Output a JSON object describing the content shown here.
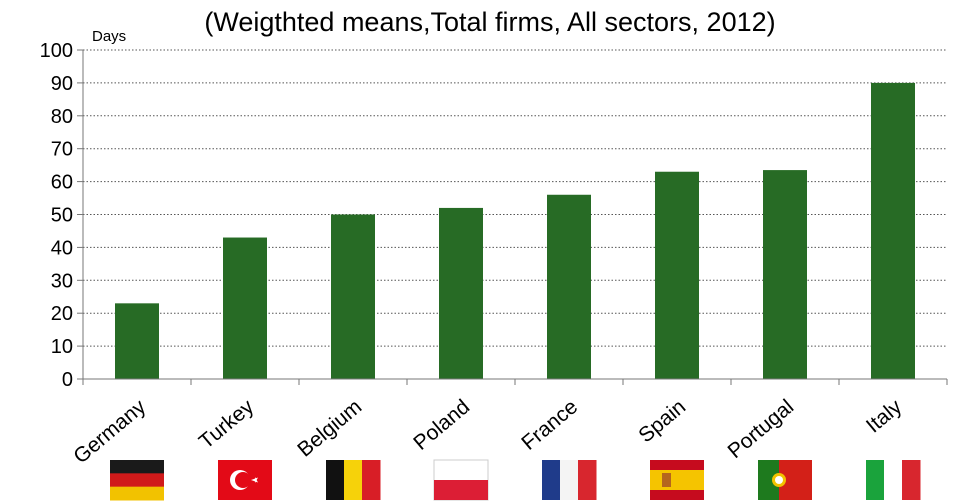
{
  "chart_data": {
    "type": "bar",
    "title": "(Weigthted means,Total firms, All sectors, 2012)",
    "ylabel": "Days",
    "xlabel": "",
    "categories": [
      "Germany",
      "Turkey",
      "Belgium",
      "Poland",
      "France",
      "Spain",
      "Portugal",
      "Italy"
    ],
    "values": [
      23,
      43,
      50,
      52,
      56,
      63,
      63.5,
      90
    ],
    "ylim": [
      0,
      100
    ],
    "yticks": [
      "0",
      "10",
      "20",
      "30",
      "40",
      "50",
      "60",
      "70",
      "80",
      "90",
      "100"
    ],
    "grid": true,
    "bar_color": "#276b25",
    "flag_icons": [
      "flag-germany-icon",
      "flag-turkey-icon",
      "flag-belgium-icon",
      "flag-poland-icon",
      "flag-france-icon",
      "flag-spain-icon",
      "flag-portugal-icon",
      "flag-italy-icon"
    ]
  }
}
